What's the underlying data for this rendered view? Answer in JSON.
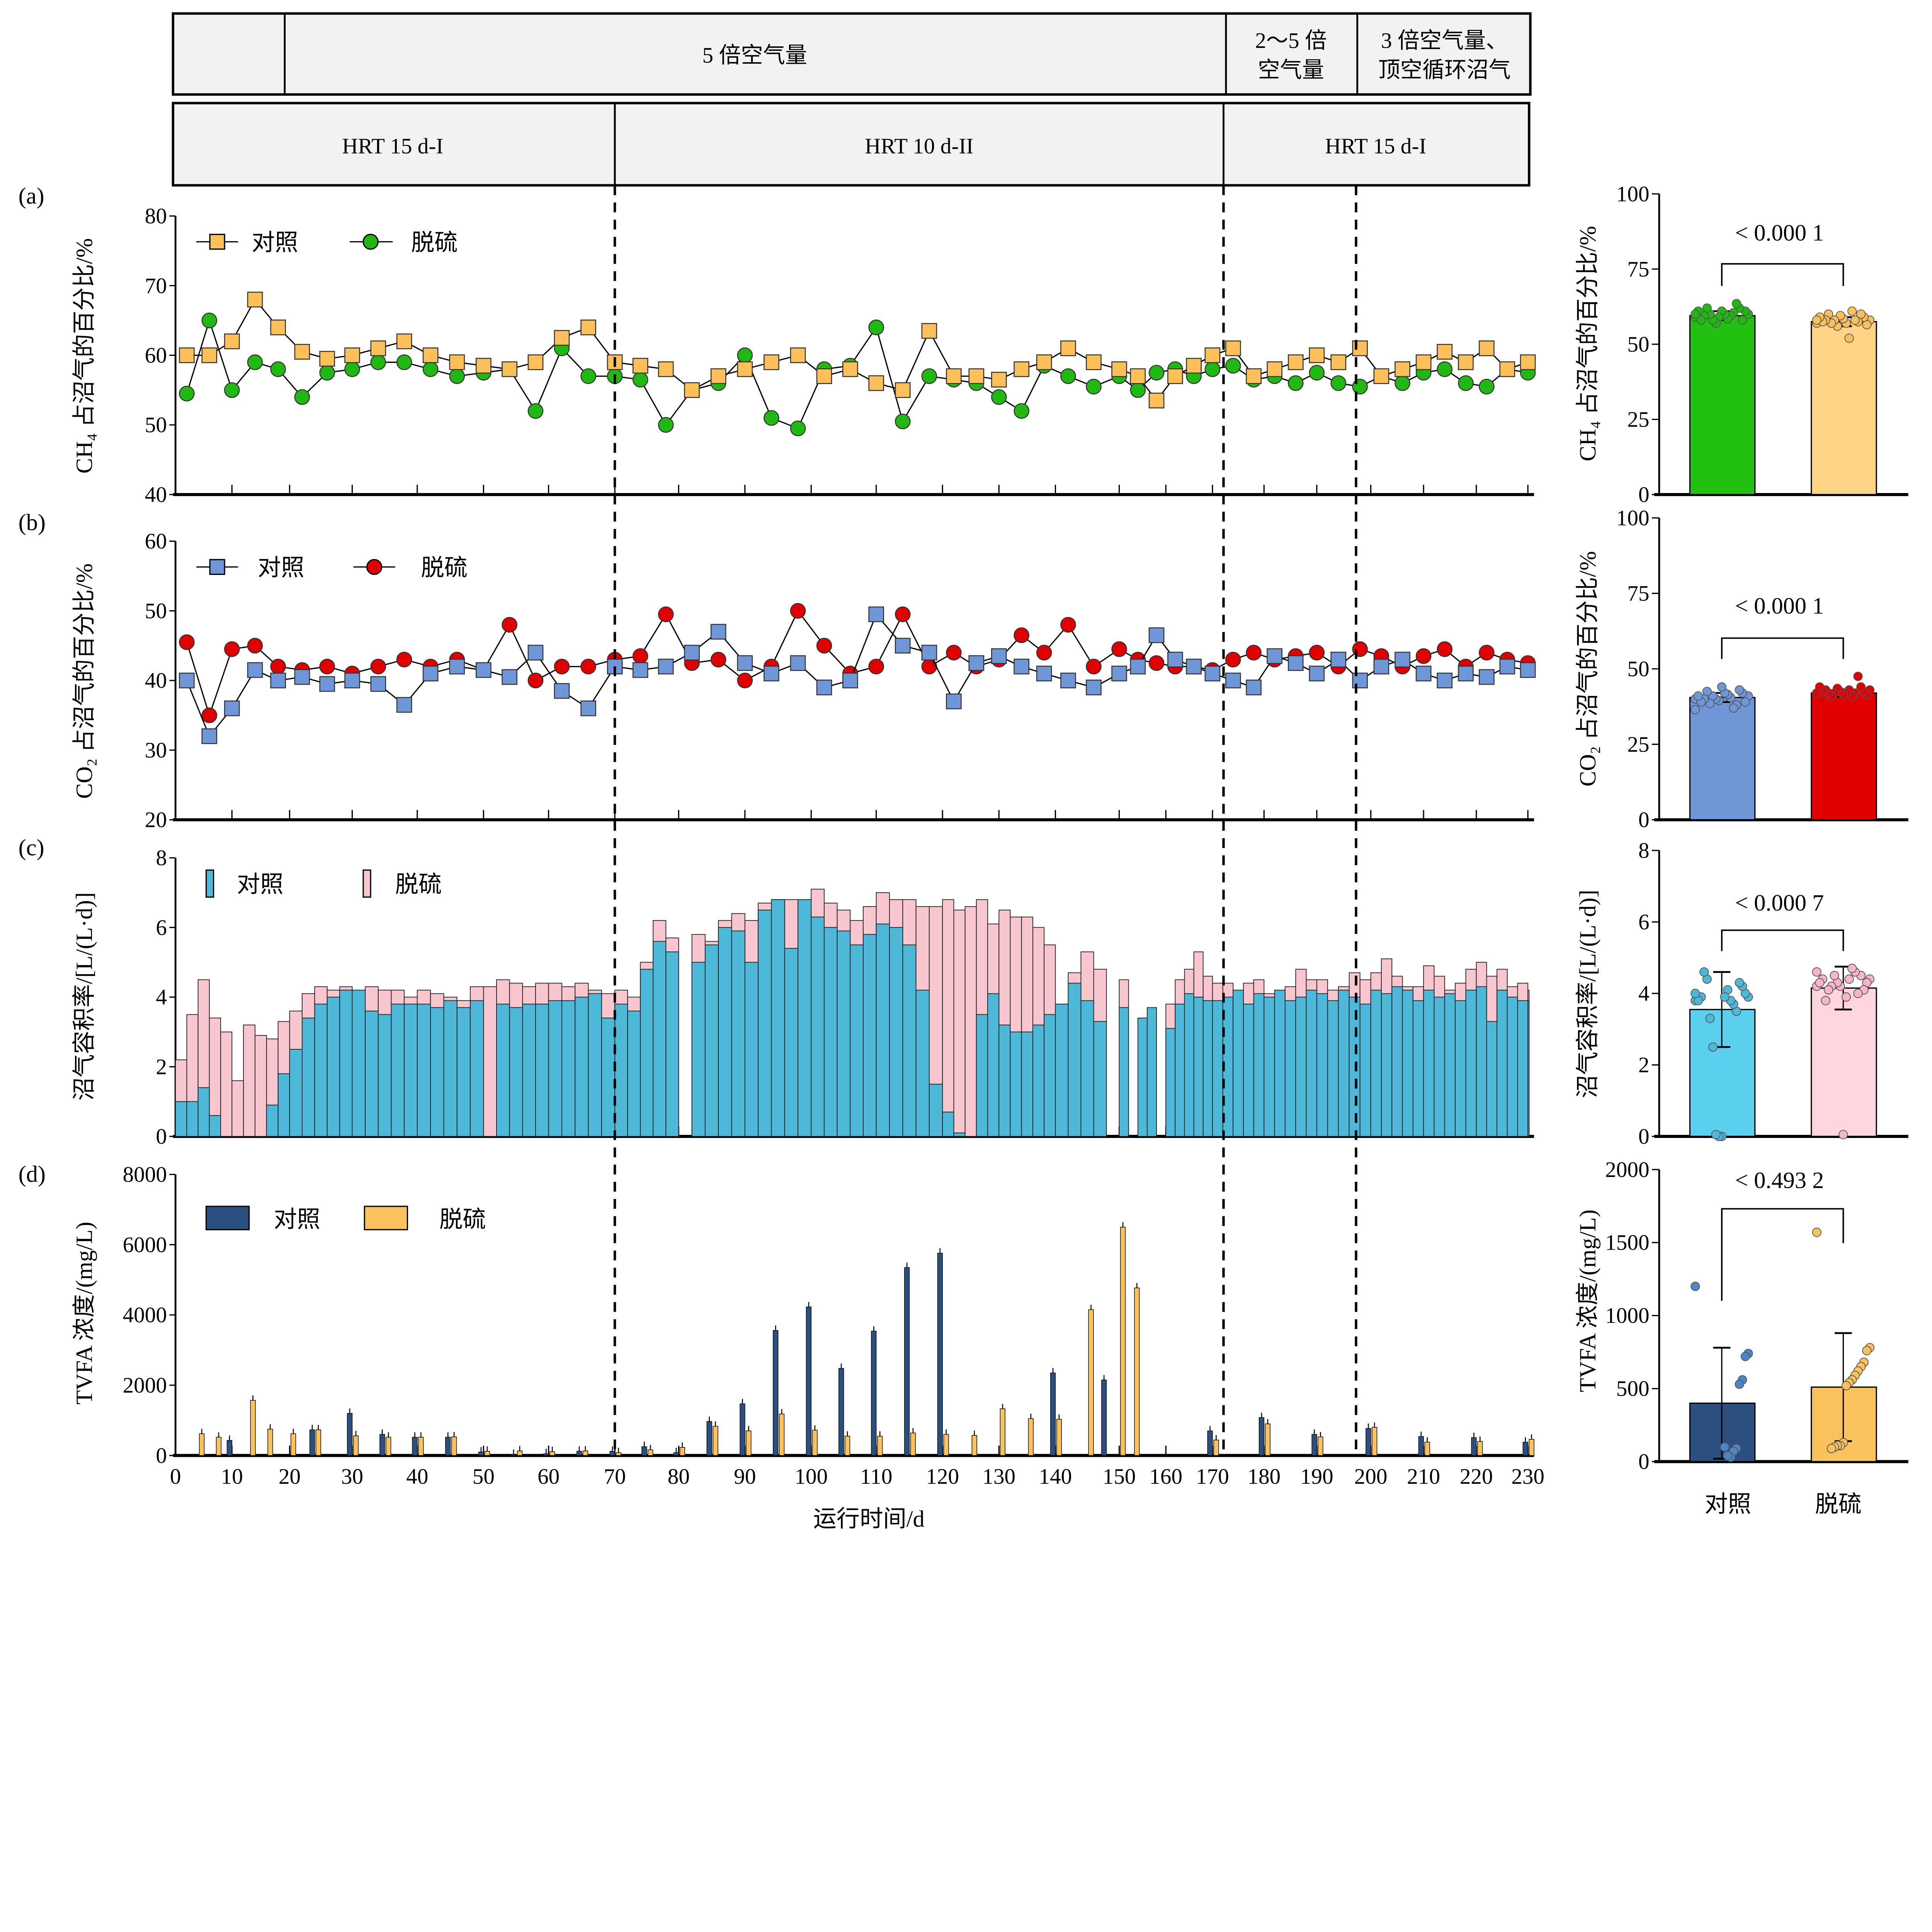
{
  "header": {
    "row1": [
      "",
      "5 倍空气量",
      "2～5 倍",
      "空气量",
      "3 倍空气量、",
      "顶空循环沼气"
    ],
    "row2": [
      "HRT 15 d-I",
      "HRT 10 d-II",
      "HRT 15 d-I"
    ]
  },
  "panel_labels": [
    "(a)",
    "(b)",
    "(c)",
    "(d)"
  ],
  "legend": {
    "control": "对照",
    "desulf": "脱硫"
  },
  "colors": {
    "a_control": "#FBC05A",
    "a_desulf": "#22B814",
    "b_control": "#6F96D6",
    "b_desulf": "#E00000",
    "c_control": "#4DB8D8",
    "c_desulf": "#F7C6CF",
    "d_control": "#2B4F7E",
    "d_desulf": "#F9C25C",
    "ra_desulf": "#22C010",
    "ra_control": "#FDD585",
    "rc_control": "#5BCFEE",
    "rc_desulf": "#FFD5E0"
  },
  "chart_data": [
    {
      "id": "a",
      "type": "line",
      "ylabel": "CH₄ 占沼气的百分比/%",
      "ylim": [
        40,
        80
      ],
      "yticks": [
        40,
        50,
        60,
        70,
        80
      ],
      "xlim": [
        0,
        230
      ],
      "x": [
        2,
        6,
        10,
        14,
        18,
        22,
        26,
        30,
        34,
        38,
        42,
        46,
        50,
        54,
        58,
        62,
        66,
        70,
        74,
        78,
        82,
        86,
        90,
        94,
        98,
        102,
        106,
        110,
        114,
        118,
        122,
        126,
        130,
        134,
        138,
        142,
        146,
        150,
        154,
        158,
        162,
        166,
        170,
        174,
        178,
        182,
        186,
        190,
        194,
        198,
        202,
        206,
        210,
        214,
        218,
        222,
        226,
        230
      ],
      "series": [
        {
          "name": "对照",
          "marker": "square",
          "values": [
            60,
            60,
            62,
            68,
            64,
            60.5,
            59.5,
            60,
            61,
            62,
            60,
            59,
            58.5,
            58,
            59,
            62.5,
            64,
            59,
            58.5,
            58,
            55,
            57,
            58,
            59,
            60,
            57,
            58,
            56,
            55,
            63.5,
            57,
            57,
            56.5,
            58,
            59,
            61,
            59,
            58,
            57,
            53.5,
            57,
            58.5,
            60,
            61,
            57,
            58,
            59,
            60,
            59,
            61,
            57,
            58,
            59,
            60.5,
            59,
            61,
            58,
            59
          ]
        },
        {
          "name": "脱硫",
          "marker": "circle",
          "values": [
            54.5,
            65,
            55,
            59,
            58,
            54,
            57.5,
            58,
            59,
            59,
            58,
            57,
            57.5,
            58,
            52,
            61,
            57,
            57,
            56.5,
            50,
            55,
            56,
            60,
            51,
            49.5,
            58,
            58.5,
            64,
            50.5,
            57,
            56.5,
            56,
            54,
            52,
            58.5,
            57,
            55.5,
            57,
            55,
            57.5,
            58,
            57,
            58,
            58.5,
            56.5,
            57,
            56,
            57.5,
            56,
            55.5,
            57,
            56,
            57.5,
            58,
            56,
            55.5,
            58,
            57.5
          ]
        }
      ]
    },
    {
      "id": "b",
      "type": "line",
      "ylabel": "CO₂ 占沼气的百分比/%",
      "ylim": [
        20,
        60
      ],
      "yticks": [
        20,
        30,
        40,
        50,
        60
      ],
      "xlim": [
        0,
        230
      ],
      "x": [
        2,
        6,
        10,
        14,
        18,
        22,
        26,
        30,
        34,
        38,
        42,
        46,
        50,
        54,
        58,
        62,
        66,
        70,
        74,
        78,
        82,
        86,
        90,
        94,
        98,
        102,
        106,
        110,
        114,
        118,
        122,
        126,
        130,
        134,
        138,
        142,
        146,
        150,
        154,
        158,
        162,
        166,
        170,
        174,
        178,
        182,
        186,
        190,
        194,
        198,
        202,
        206,
        210,
        214,
        218,
        222,
        226,
        230
      ],
      "series": [
        {
          "name": "对照",
          "marker": "square",
          "values": [
            40,
            32,
            36,
            41.5,
            40,
            40.5,
            39.5,
            40,
            39.5,
            36.5,
            41,
            42,
            41.5,
            40.5,
            44,
            38.5,
            36,
            42,
            41.5,
            42,
            44,
            47,
            42.5,
            41,
            42.5,
            39,
            40,
            49.5,
            45,
            44,
            37,
            42.5,
            43.5,
            42,
            41,
            40,
            39,
            41,
            42,
            46.5,
            43,
            42,
            41,
            40,
            39,
            43.5,
            42.5,
            41,
            43,
            40,
            42,
            43,
            41,
            40,
            41,
            40.5,
            42,
            41.5
          ]
        },
        {
          "name": "脱硫",
          "marker": "circle",
          "values": [
            45.5,
            35,
            44.5,
            45,
            42,
            41.5,
            42,
            41,
            42,
            43,
            42,
            43,
            41.5,
            48,
            40,
            42,
            42,
            43,
            43.5,
            49.5,
            42.5,
            43,
            40,
            42,
            50,
            45,
            41,
            42,
            49.5,
            42,
            44,
            42,
            43,
            46.5,
            44,
            48,
            42,
            44.5,
            43,
            42.5,
            42,
            42,
            41.5,
            43,
            44,
            43,
            43.5,
            44,
            42,
            44.5,
            43.5,
            42,
            43.5,
            44.5,
            42,
            44,
            43,
            42.5
          ]
        }
      ]
    },
    {
      "id": "c",
      "type": "bar",
      "ylabel": "沼气容积率/[L/(L·d)]",
      "ylim": [
        0,
        8
      ],
      "yticks": [
        0,
        2,
        4,
        6,
        8
      ],
      "xlim": [
        0,
        230
      ],
      "x_step": 2,
      "series": [
        {
          "name": "脱硫",
          "values": [
            2.2,
            3.5,
            4.5,
            3.4,
            3.0,
            1.6,
            3.2,
            2.9,
            2.8,
            3.3,
            3.6,
            4.1,
            4.3,
            4.2,
            4.3,
            4.1,
            4.3,
            4.2,
            4.2,
            4.0,
            4.2,
            4.1,
            4.0,
            3.9,
            4.3,
            4.3,
            4.5,
            4.4,
            4.3,
            4.4,
            4.4,
            4.3,
            4.4,
            4.2,
            4.1,
            4.2,
            4.0,
            5.0,
            6.2,
            5.7,
            0,
            5.8,
            5.6,
            6.2,
            6.4,
            6.2,
            6.7,
            6.8,
            6.8,
            6.6,
            7.1,
            6.7,
            6.5,
            6.2,
            6.6,
            7.0,
            6.8,
            6.8,
            6.6,
            6.6,
            6.8,
            6.5,
            6.6,
            6.8,
            6.1,
            6.5,
            6.3,
            6.3,
            6.0,
            5.5,
            0,
            4.7,
            5.3,
            4.8,
            0,
            4.5,
            0,
            0,
            0,
            0,
            3.8,
            4.5,
            4.8,
            5.3,
            4.6,
            4.4,
            4.4,
            4.2,
            4.4,
            4.5,
            4.1,
            4.1,
            4.3,
            4.8,
            4.5,
            4.5,
            4.2,
            4.3,
            4.7,
            4.5,
            4.7,
            5.1,
            4.6,
            4.3,
            4.3,
            4.9,
            4.6,
            4.2,
            4.4,
            4.8,
            5.0,
            4.6,
            4.8,
            4.3,
            4.4,
            4.2
          ]
        },
        {
          "name": "对照",
          "values": [
            1.0,
            1.0,
            1.4,
            0.6,
            0,
            0,
            0,
            0,
            0.9,
            1.8,
            2.5,
            3.4,
            3.8,
            4.0,
            4.2,
            4.2,
            3.6,
            3.5,
            3.8,
            3.8,
            3.8,
            3.7,
            3.9,
            3.7,
            3.9,
            0,
            3.8,
            3.7,
            3.8,
            3.8,
            3.9,
            3.9,
            4.0,
            4.1,
            3.4,
            3.8,
            3.6,
            4.8,
            5.6,
            5.3,
            0,
            5.0,
            5.5,
            6.0,
            5.9,
            5.0,
            6.5,
            6.8,
            5.4,
            6.8,
            6.3,
            6.0,
            5.9,
            5.5,
            5.8,
            6.1,
            6.0,
            5.5,
            4.2,
            1.5,
            0.7,
            0.1,
            0,
            3.5,
            4.1,
            3.2,
            3.0,
            3.0,
            3.2,
            3.5,
            3.8,
            4.4,
            3.9,
            3.3,
            0,
            3.7,
            0,
            3.4,
            3.7,
            0,
            3.1,
            3.8,
            4.1,
            4.0,
            3.9,
            3.9,
            4.0,
            4.2,
            3.8,
            4.1,
            4.0,
            4.2,
            3.9,
            4.0,
            4.2,
            4.1,
            3.9,
            4.2,
            4.0,
            3.8,
            4.2,
            4.1,
            4.3,
            4.2,
            3.9,
            4.2,
            4.0,
            4.1,
            3.9,
            4.2,
            4.3,
            3.3,
            4.2,
            4.0,
            3.9,
            3.9
          ]
        }
      ]
    },
    {
      "id": "d",
      "type": "bar",
      "ylabel": "TVFA 浓度/(mg/L)",
      "xlabel": "运行时间/d",
      "ylim": [
        0,
        8000
      ],
      "yticks": [
        0,
        2000,
        4000,
        6000,
        8000
      ],
      "xlim": [
        0,
        230
      ],
      "xticks": [
        0,
        10,
        20,
        30,
        40,
        50,
        60,
        70,
        80,
        90,
        100,
        110,
        120,
        130,
        140,
        150,
        160,
        170,
        180,
        190,
        200,
        210,
        220,
        230
      ],
      "x": [
        4,
        7,
        10,
        13,
        16,
        20,
        24,
        30,
        35,
        40,
        45,
        50,
        55,
        60,
        65,
        70,
        75,
        80,
        85,
        90,
        95,
        100,
        105,
        110,
        115,
        120,
        125,
        130,
        135,
        140,
        145,
        148,
        150,
        153,
        170,
        180,
        190,
        200,
        210,
        220,
        230
      ],
      "series": [
        {
          "name": "对照",
          "values": [
            0,
            0,
            430,
            0,
            0,
            0,
            730,
            1200,
            600,
            520,
            520,
            100,
            30,
            50,
            120,
            120,
            250,
            80,
            970,
            1470,
            3560,
            4230,
            2480,
            3540,
            5350,
            5760,
            0,
            0,
            0,
            2350,
            0,
            2150,
            0,
            0,
            700,
            1080,
            600,
            770,
            540,
            510,
            380
          ]
        },
        {
          "name": "脱硫",
          "values": [
            620,
            520,
            0,
            1570,
            750,
            620,
            730,
            560,
            520,
            520,
            530,
            120,
            130,
            110,
            130,
            80,
            160,
            230,
            830,
            700,
            1180,
            720,
            550,
            550,
            640,
            600,
            570,
            1330,
            1050,
            1030,
            4150,
            0,
            6500,
            4770,
            440,
            900,
            530,
            800,
            380,
            400,
            460
          ]
        }
      ]
    },
    {
      "id": "a_summary",
      "type": "bar",
      "ylabel": "CH₄ 占沼气的百分比/%",
      "ylim": [
        0,
        100
      ],
      "yticks": [
        0,
        25,
        50,
        75,
        100
      ],
      "p_value": "< 0.000 1",
      "groups": [
        {
          "name": "脱硫",
          "mean": 59.5,
          "sd": 1.5,
          "points": [
            59,
            60,
            61,
            58,
            62,
            63.5,
            60.5,
            59.5,
            58.5,
            60,
            61,
            59,
            57,
            58,
            60,
            62,
            59.5,
            58,
            61,
            60
          ]
        },
        {
          "name": "对照",
          "mean": 57.5,
          "sd": 1.5,
          "points": [
            57,
            58,
            56.5,
            59,
            60,
            57.5,
            58,
            61,
            52,
            57,
            58.5,
            59.5,
            56,
            58,
            57,
            60,
            58,
            57.5,
            59,
            58
          ]
        }
      ]
    },
    {
      "id": "b_summary",
      "type": "bar",
      "ylabel": "CO₂ 占沼气的百分比/%",
      "ylim": [
        0,
        100
      ],
      "yticks": [
        0,
        25,
        50,
        75,
        100
      ],
      "p_value": "< 0.000 1",
      "groups": [
        {
          "name": "对照",
          "mean": 40.5,
          "sd": 1.5,
          "points": [
            40,
            41,
            39,
            42,
            43,
            38,
            37,
            40.5,
            41.5,
            42,
            44,
            39.5,
            40,
            41,
            38.5,
            42.5,
            40,
            39,
            41,
            36.5
          ]
        },
        {
          "name": "脱硫",
          "mean": 42,
          "sd": 1.2,
          "points": [
            42,
            43,
            41.5,
            42.5,
            44,
            47.5,
            42,
            41,
            43,
            42,
            41.5,
            42.5,
            43.5,
            42,
            41,
            42,
            43,
            42.5,
            44,
            42
          ]
        }
      ]
    },
    {
      "id": "c_summary",
      "type": "bar",
      "ylabel": "沼气容积率/[L/(L·d)]",
      "ylim": [
        0,
        8
      ],
      "yticks": [
        0,
        2,
        4,
        6,
        8
      ],
      "p_value": "< 0.000 7",
      "groups": [
        {
          "name": "对照",
          "mean": 3.55,
          "sd": 1.05,
          "points": [
            3.8,
            3.9,
            4.0,
            4.2,
            4.3,
            3.5,
            3.7,
            3.8,
            4.1,
            3.9,
            0,
            0,
            0.05,
            2.5,
            3.3,
            4.4,
            4.6,
            3.9,
            3.8,
            4.0
          ]
        },
        {
          "name": "脱硫",
          "mean": 4.15,
          "sd": 0.6,
          "points": [
            4.2,
            4.4,
            4.3,
            4.1,
            4.5,
            4.0,
            4.6,
            4.7,
            4.4,
            3.9,
            0.05,
            4.2,
            4.3,
            4.5,
            4.2,
            4.1,
            3.8,
            4.4,
            4.3,
            4.6
          ]
        }
      ]
    },
    {
      "id": "d_summary",
      "type": "bar",
      "ylabel": "TVFA 浓度/(mg/L)",
      "ylim": [
        0,
        2000
      ],
      "yticks": [
        0,
        500,
        1000,
        1500,
        2000
      ],
      "p_value": "< 0.493 2",
      "categories": [
        "对照",
        "脱硫"
      ],
      "groups": [
        {
          "name": "对照",
          "mean": 400,
          "sd": 380,
          "points": [
            1200,
            740,
            720,
            560,
            530,
            90,
            70,
            30,
            40,
            100
          ]
        },
        {
          "name": "脱硫",
          "mean": 510,
          "sd": 370,
          "points": [
            1570,
            780,
            760,
            680,
            650,
            620,
            590,
            560,
            540,
            520,
            130,
            110,
            110,
            100,
            90
          ]
        }
      ]
    }
  ]
}
